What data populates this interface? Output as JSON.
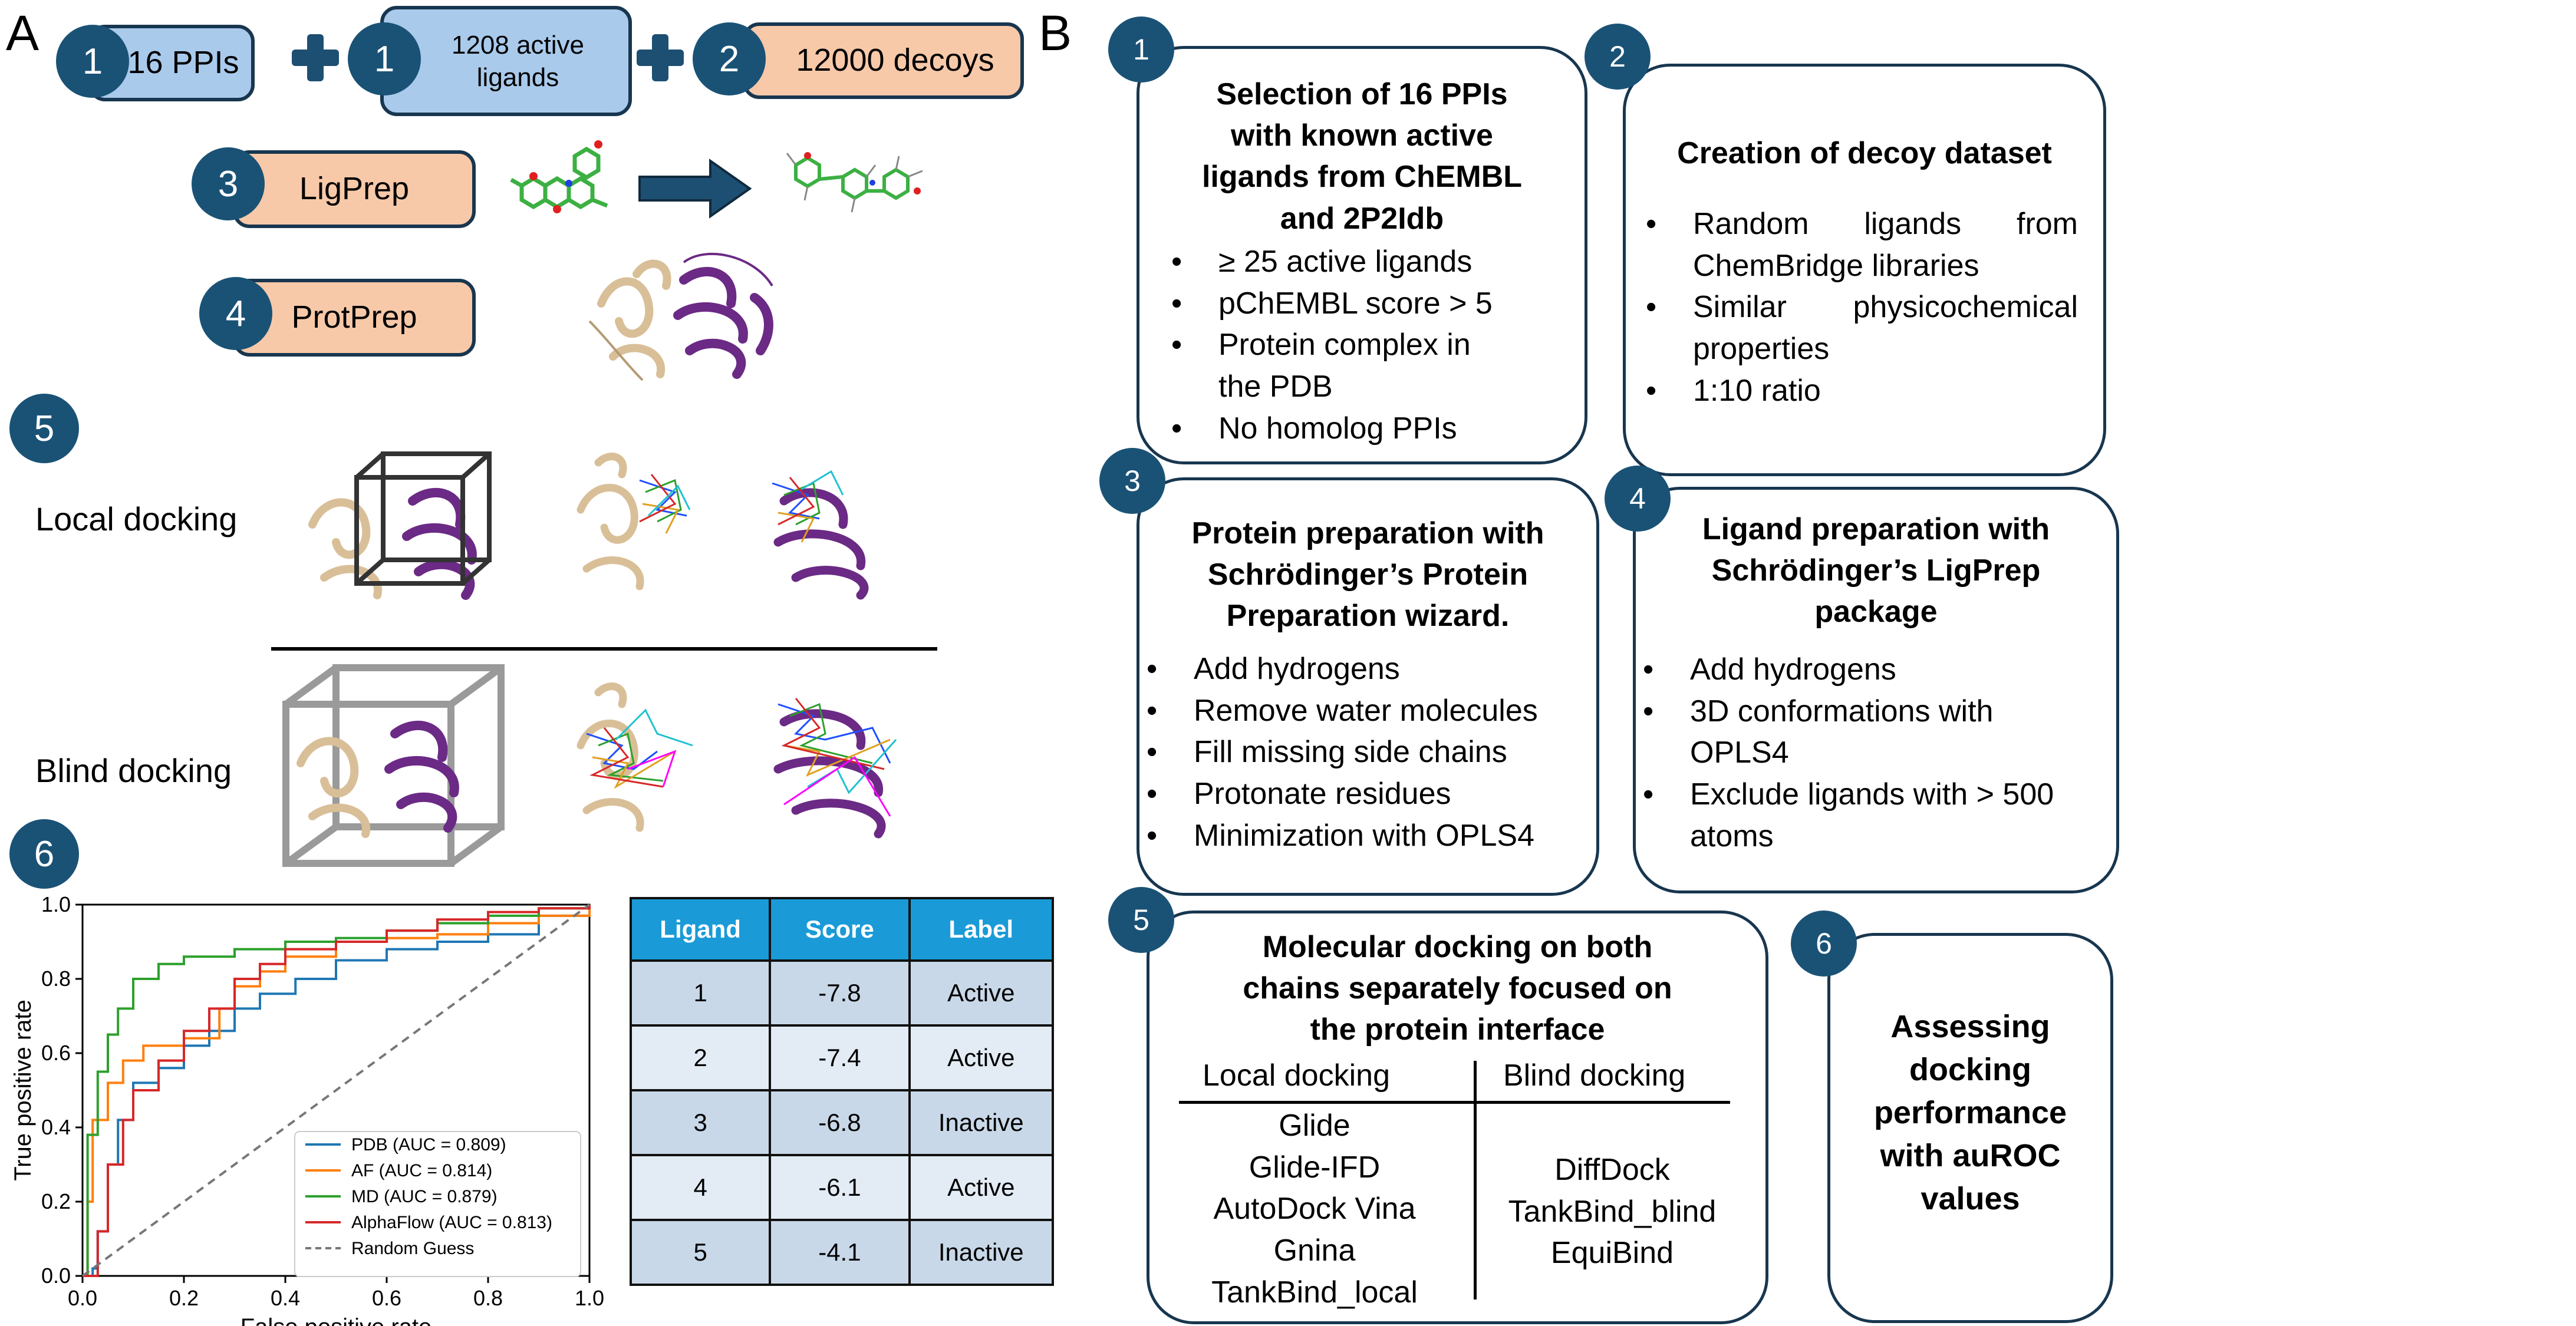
{
  "panel_a": {
    "letter": "A",
    "steps": {
      "s1a": {
        "num": "1",
        "label": "16 PPIs"
      },
      "s1b": {
        "num": "1",
        "label": "1208 active ligands"
      },
      "s2": {
        "num": "2",
        "label": "12000 decoys"
      },
      "s3": {
        "num": "3",
        "label": "LigPrep"
      },
      "s4": {
        "num": "4",
        "label": "ProtPrep"
      },
      "s5": {
        "num": "5"
      },
      "s6": {
        "num": "6"
      }
    },
    "local_docking": "Local docking",
    "blind_docking": "Blind docking",
    "colors": {
      "circle": "#1a5276",
      "blue_pill": "#a9caeb",
      "peach_pill": "#f7c9a9",
      "protein_a": "#d9bf98",
      "protein_b": "#6b2a85"
    },
    "roc": {
      "xlabel": "False positive rate",
      "ylabel": "True positive rate",
      "xticks": [
        "0.0",
        "0.2",
        "0.4",
        "0.6",
        "0.8",
        "1.0"
      ],
      "yticks": [
        "0.0",
        "0.2",
        "0.4",
        "0.6",
        "0.8",
        "1.0"
      ],
      "legend": [
        {
          "label": "PDB (AUC = 0.809)",
          "color": "#1f77b4"
        },
        {
          "label": "AF (AUC = 0.814)",
          "color": "#ff7f0e"
        },
        {
          "label": "MD (AUC = 0.879)",
          "color": "#2ca02c"
        },
        {
          "label": "AlphaFlow (AUC = 0.813)",
          "color": "#d62728"
        },
        {
          "label": "Random Guess",
          "color": "#777777"
        }
      ]
    },
    "table": {
      "headers": [
        "Ligand",
        "Score",
        "Label"
      ],
      "rows": [
        [
          "1",
          "-7.8",
          "Active"
        ],
        [
          "2",
          "-7.4",
          "Active"
        ],
        [
          "3",
          "-6.8",
          "Inactive"
        ],
        [
          "4",
          "-6.1",
          "Active"
        ],
        [
          "5",
          "-4.1",
          "Inactive"
        ]
      ]
    }
  },
  "chart_data": {
    "type": "line",
    "xlabel": "False positive rate",
    "ylabel": "True positive rate",
    "xlim": [
      0,
      1
    ],
    "ylim": [
      0,
      1
    ],
    "grid": false,
    "legend_position": "lower-right",
    "series": [
      {
        "name": "PDB (AUC = 0.809)",
        "color": "#1f77b4",
        "points": [
          [
            0,
            0
          ],
          [
            0.02,
            0.02
          ],
          [
            0.03,
            0.12
          ],
          [
            0.05,
            0.3
          ],
          [
            0.07,
            0.42
          ],
          [
            0.1,
            0.52
          ],
          [
            0.15,
            0.56
          ],
          [
            0.2,
            0.62
          ],
          [
            0.25,
            0.66
          ],
          [
            0.3,
            0.72
          ],
          [
            0.35,
            0.76
          ],
          [
            0.42,
            0.8
          ],
          [
            0.5,
            0.85
          ],
          [
            0.6,
            0.88
          ],
          [
            0.7,
            0.9
          ],
          [
            0.8,
            0.92
          ],
          [
            0.9,
            0.97
          ],
          [
            1,
            1
          ]
        ]
      },
      {
        "name": "AF (AUC = 0.814)",
        "color": "#ff7f0e",
        "points": [
          [
            0,
            0
          ],
          [
            0.01,
            0.2
          ],
          [
            0.02,
            0.42
          ],
          [
            0.05,
            0.52
          ],
          [
            0.08,
            0.58
          ],
          [
            0.12,
            0.62
          ],
          [
            0.2,
            0.64
          ],
          [
            0.27,
            0.72
          ],
          [
            0.3,
            0.78
          ],
          [
            0.35,
            0.82
          ],
          [
            0.4,
            0.86
          ],
          [
            0.5,
            0.9
          ],
          [
            0.6,
            0.91
          ],
          [
            0.7,
            0.92
          ],
          [
            0.8,
            0.95
          ],
          [
            0.9,
            0.97
          ],
          [
            1,
            1
          ]
        ]
      },
      {
        "name": "MD (AUC = 0.879)",
        "color": "#2ca02c",
        "points": [
          [
            0,
            0
          ],
          [
            0.01,
            0.38
          ],
          [
            0.03,
            0.55
          ],
          [
            0.05,
            0.65
          ],
          [
            0.07,
            0.72
          ],
          [
            0.1,
            0.8
          ],
          [
            0.15,
            0.84
          ],
          [
            0.2,
            0.86
          ],
          [
            0.3,
            0.88
          ],
          [
            0.4,
            0.9
          ],
          [
            0.5,
            0.91
          ],
          [
            0.6,
            0.93
          ],
          [
            0.7,
            0.95
          ],
          [
            0.8,
            0.97
          ],
          [
            0.9,
            0.99
          ],
          [
            1,
            1
          ]
        ]
      },
      {
        "name": "AlphaFlow (AUC = 0.813)",
        "color": "#d62728",
        "points": [
          [
            0,
            0
          ],
          [
            0.03,
            0.12
          ],
          [
            0.05,
            0.3
          ],
          [
            0.08,
            0.42
          ],
          [
            0.1,
            0.5
          ],
          [
            0.15,
            0.58
          ],
          [
            0.2,
            0.66
          ],
          [
            0.25,
            0.72
          ],
          [
            0.3,
            0.8
          ],
          [
            0.35,
            0.84
          ],
          [
            0.4,
            0.88
          ],
          [
            0.5,
            0.9
          ],
          [
            0.6,
            0.93
          ],
          [
            0.7,
            0.96
          ],
          [
            0.8,
            0.98
          ],
          [
            0.9,
            0.99
          ],
          [
            1,
            1
          ]
        ]
      },
      {
        "name": "Random Guess",
        "color": "#777777",
        "dashed": true,
        "points": [
          [
            0,
            0
          ],
          [
            1,
            1
          ]
        ]
      }
    ]
  },
  "panel_b": {
    "letter": "B",
    "box1": {
      "num": "1",
      "title": [
        "Selection of 16 PPIs",
        "with known active",
        "ligands from ChEMBL",
        "and 2P2Idb"
      ],
      "bullets": [
        "≥ 25 active ligands",
        "pChEMBL score > 5",
        "Protein complex in the PDB",
        "No homolog PPIs"
      ]
    },
    "box2": {
      "num": "2",
      "title": [
        "Creation of decoy dataset"
      ],
      "bullets": [
        "Random ligands from ChemBridge libraries",
        "Similar physicochemical properties",
        "1:10 ratio"
      ]
    },
    "box3": {
      "num": "3",
      "title": [
        "Protein preparation with",
        "Schrödinger’s Protein",
        "Preparation wizard."
      ],
      "bullets": [
        "Add hydrogens",
        "Remove water molecules",
        "Fill missing side chains",
        "Protonate residues",
        "Minimization with OPLS4"
      ]
    },
    "box4": {
      "num": "4",
      "title": [
        "Ligand preparation with",
        "Schrödinger’s LigPrep",
        "package"
      ],
      "bullets": [
        "Add hydrogens",
        "3D conformations with OPLS4",
        "Exclude ligands with > 500 atoms"
      ]
    },
    "box5": {
      "num": "5",
      "title": [
        "Molecular docking on both",
        "chains separately focused on",
        "the protein interface"
      ],
      "local_header": "Local docking",
      "blind_header": "Blind docking",
      "local_methods": [
        "Glide",
        "Glide-IFD",
        "AutoDock Vina",
        "Gnina",
        "TankBind_local"
      ],
      "blind_methods": [
        "DiffDock",
        "TankBind_blind",
        "EquiBind"
      ]
    },
    "box6": {
      "num": "6",
      "title": [
        "Assessing",
        "docking",
        "performance",
        "with auROC",
        "values"
      ]
    }
  }
}
